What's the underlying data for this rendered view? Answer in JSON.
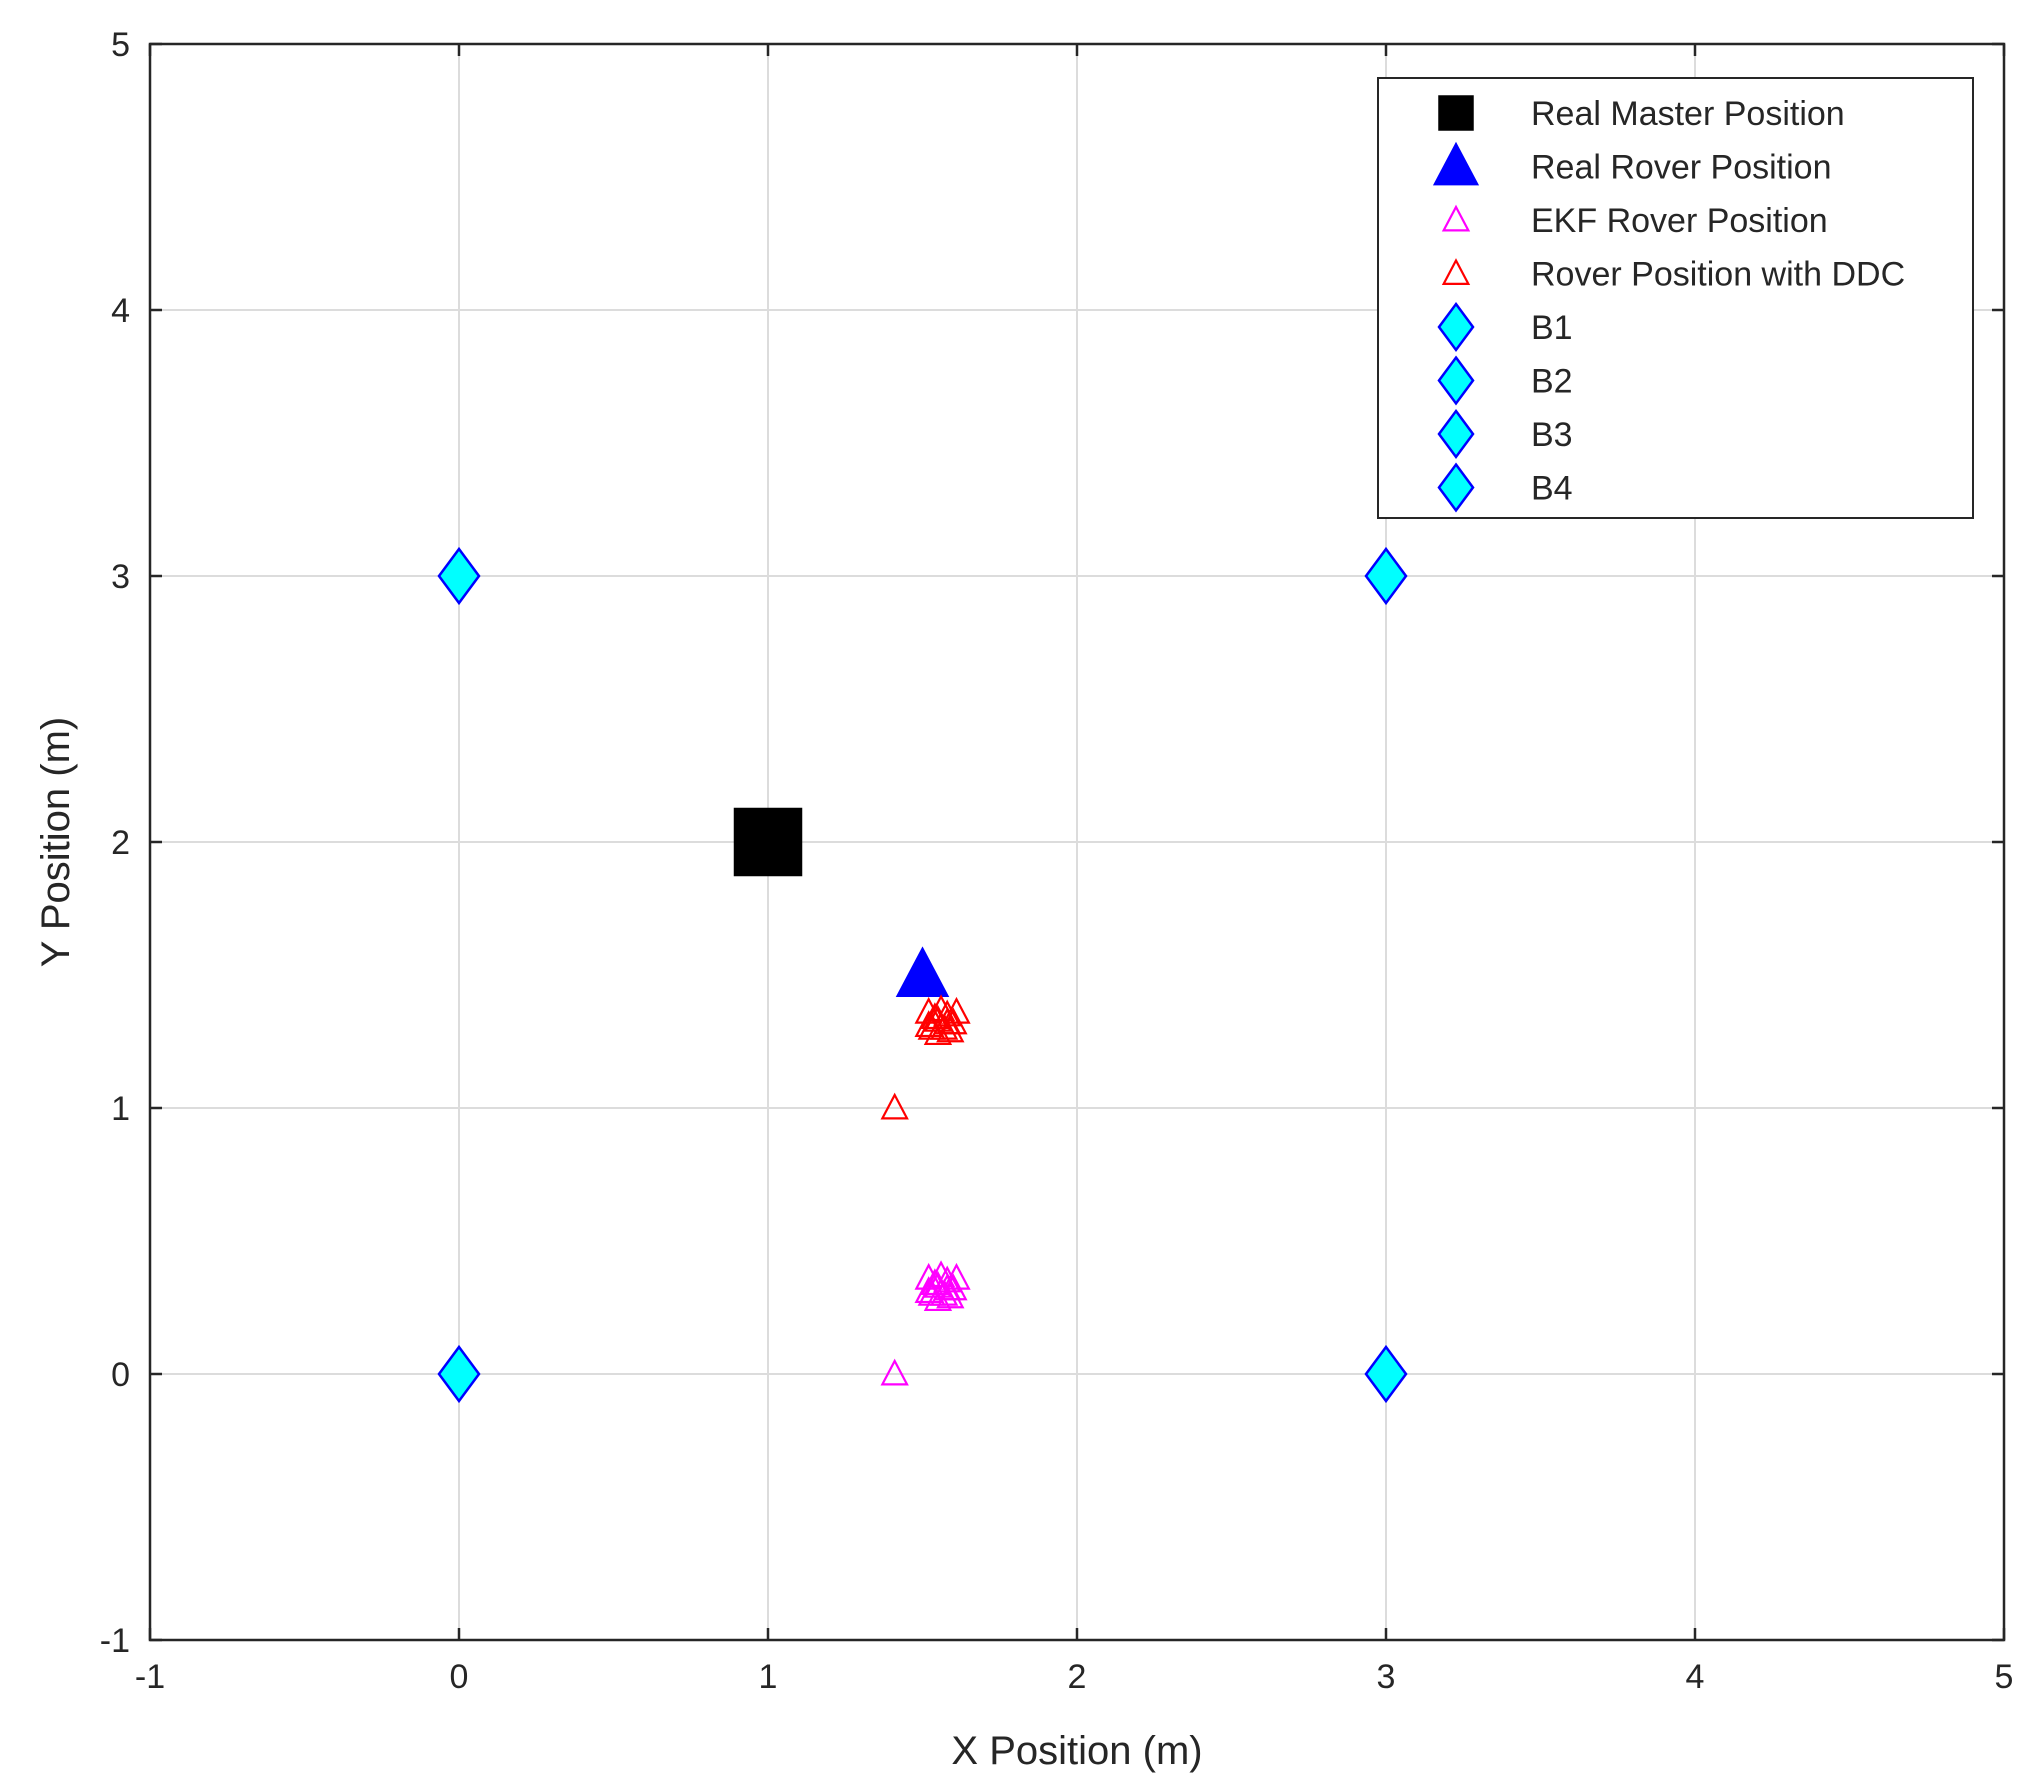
{
  "chart_data": {
    "type": "scatter",
    "title": "",
    "xlabel": "X Position (m)",
    "ylabel": "Y Position (m)",
    "xlim": [
      -1,
      5
    ],
    "ylim": [
      -1,
      5
    ],
    "xticks": [
      -1,
      0,
      1,
      2,
      3,
      4,
      5
    ],
    "yticks": [
      -1,
      0,
      1,
      2,
      3,
      4,
      5
    ],
    "grid": true,
    "legend_position": "top-right",
    "series": [
      {
        "name": "Real Master Position",
        "marker": "square",
        "filled": true,
        "color": "#000000",
        "points": [
          [
            1.0,
            2.0
          ]
        ]
      },
      {
        "name": "Real Rover Position",
        "marker": "triangle",
        "filled": true,
        "color": "#0000ff",
        "points": [
          [
            1.5,
            1.5
          ]
        ]
      },
      {
        "name": "EKF Rover Position",
        "marker": "triangle",
        "filled": false,
        "color": "#ff00ff",
        "points": [
          [
            1.41,
            0.0
          ],
          [
            1.52,
            0.36
          ],
          [
            1.55,
            0.33
          ],
          [
            1.58,
            0.35
          ],
          [
            1.53,
            0.3
          ],
          [
            1.57,
            0.3
          ],
          [
            1.6,
            0.32
          ],
          [
            1.55,
            0.28
          ],
          [
            1.61,
            0.36
          ],
          [
            1.54,
            0.34
          ],
          [
            1.59,
            0.29
          ],
          [
            1.56,
            0.37
          ],
          [
            1.52,
            0.31
          ],
          [
            1.58,
            0.32
          ]
        ]
      },
      {
        "name": "Rover Position with DDC",
        "marker": "triangle",
        "filled": false,
        "color": "#ff0000",
        "points": [
          [
            1.41,
            1.0
          ],
          [
            1.52,
            1.36
          ],
          [
            1.55,
            1.33
          ],
          [
            1.58,
            1.35
          ],
          [
            1.53,
            1.3
          ],
          [
            1.57,
            1.3
          ],
          [
            1.6,
            1.32
          ],
          [
            1.55,
            1.28
          ],
          [
            1.61,
            1.36
          ],
          [
            1.54,
            1.34
          ],
          [
            1.59,
            1.29
          ],
          [
            1.56,
            1.37
          ],
          [
            1.52,
            1.31
          ],
          [
            1.58,
            1.32
          ]
        ]
      },
      {
        "name": "B1",
        "marker": "diamond",
        "filled": true,
        "color": "#00ffff",
        "edge": "#0000ff",
        "points": [
          [
            0,
            0
          ]
        ]
      },
      {
        "name": "B2",
        "marker": "diamond",
        "filled": true,
        "color": "#00ffff",
        "edge": "#0000ff",
        "points": [
          [
            0,
            3
          ]
        ]
      },
      {
        "name": "B3",
        "marker": "diamond",
        "filled": true,
        "color": "#00ffff",
        "edge": "#0000ff",
        "points": [
          [
            3,
            3
          ]
        ]
      },
      {
        "name": "B4",
        "marker": "diamond",
        "filled": true,
        "color": "#00ffff",
        "edge": "#0000ff",
        "points": [
          [
            3,
            0
          ]
        ]
      }
    ]
  }
}
